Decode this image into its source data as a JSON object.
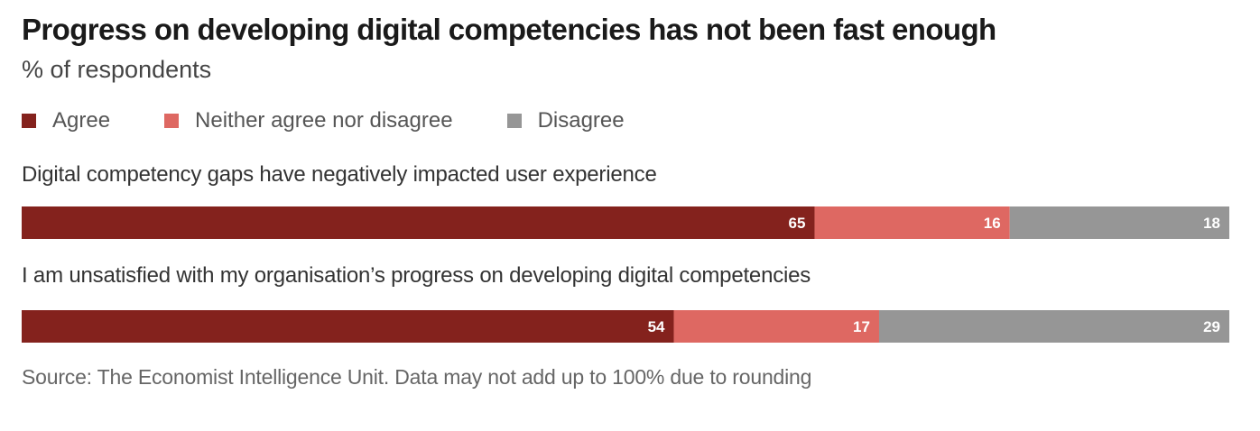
{
  "chart_data": {
    "type": "bar",
    "stacked": true,
    "orientation": "horizontal",
    "title": "Progress on developing digital competencies has not been fast enough",
    "subtitle": "% of respondents",
    "categories": [
      "Digital competency gaps have negatively impacted user experience",
      "I am unsatisfied with my organisation’s progress on developing digital competencies"
    ],
    "series": [
      {
        "name": "Agree",
        "values": [
          65,
          54
        ],
        "color": "#84221d"
      },
      {
        "name": "Neither agree nor disagree",
        "values": [
          16,
          17
        ],
        "color": "#de6862"
      },
      {
        "name": "Disagree",
        "values": [
          18,
          29
        ],
        "color": "#969696"
      }
    ],
    "legend_position": "top-left",
    "grid": false
  },
  "footer": {
    "source": "Source: The Economist Intelligence Unit. Data may not add up to 100% due to rounding"
  }
}
